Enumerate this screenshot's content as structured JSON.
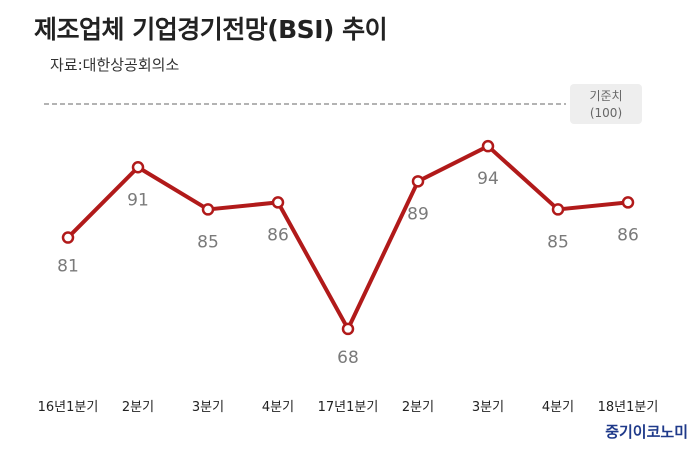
{
  "title": "제조업체 기업경기전망(BSI) 추이",
  "source": "자료:대한상공회의소",
  "brand": "중기이코노미",
  "colors": {
    "line": "#b11a1a",
    "marker_fill": "#ffffff",
    "reference_line": "#9a9a9a",
    "reference_box": "#eeeeee"
  },
  "chart_data": {
    "type": "line",
    "categories": [
      "16년1분기",
      "2분기",
      "3분기",
      "4분기",
      "17년1분기",
      "2분기",
      "3분기",
      "4분기",
      "18년1분기"
    ],
    "series": [
      {
        "values": [
          81,
          91,
          85,
          86,
          68,
          89,
          94,
          85,
          86
        ]
      }
    ],
    "reference": {
      "value": 100,
      "label": "기준치",
      "sublabel": "(100)",
      "style": "dashed"
    },
    "ylim": [
      65,
      100
    ],
    "grid": false,
    "legend": "none"
  }
}
